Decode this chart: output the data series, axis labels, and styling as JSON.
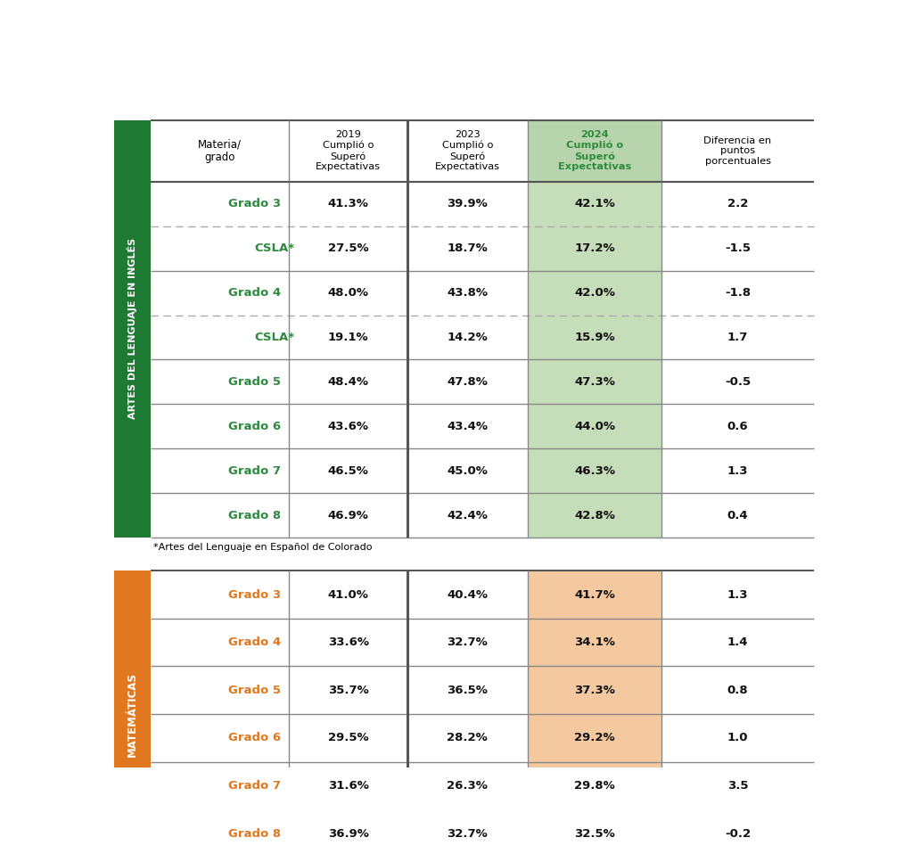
{
  "ela_rows": [
    {
      "label": "Grado 3",
      "v2019": "41.3%",
      "v2023": "39.9%",
      "v2024": "42.1%",
      "diff": "2.2",
      "dashed_below": true,
      "is_csla": false
    },
    {
      "label": "CSLA*",
      "v2019": "27.5%",
      "v2023": "18.7%",
      "v2024": "17.2%",
      "diff": "-1.5",
      "dashed_below": false,
      "is_csla": true
    },
    {
      "label": "Grado 4",
      "v2019": "48.0%",
      "v2023": "43.8%",
      "v2024": "42.0%",
      "diff": "-1.8",
      "dashed_below": true,
      "is_csla": false
    },
    {
      "label": "CSLA*",
      "v2019": "19.1%",
      "v2023": "14.2%",
      "v2024": "15.9%",
      "diff": "1.7",
      "dashed_below": false,
      "is_csla": true
    },
    {
      "label": "Grado 5",
      "v2019": "48.4%",
      "v2023": "47.8%",
      "v2024": "47.3%",
      "diff": "-0.5",
      "dashed_below": false,
      "is_csla": false
    },
    {
      "label": "Grado 6",
      "v2019": "43.6%",
      "v2023": "43.4%",
      "v2024": "44.0%",
      "diff": "0.6",
      "dashed_below": false,
      "is_csla": false
    },
    {
      "label": "Grado 7",
      "v2019": "46.5%",
      "v2023": "45.0%",
      "v2024": "46.3%",
      "diff": "1.3",
      "dashed_below": false,
      "is_csla": false
    },
    {
      "label": "Grado 8",
      "v2019": "46.9%",
      "v2023": "42.4%",
      "v2024": "42.8%",
      "diff": "0.4",
      "dashed_below": false,
      "is_csla": false
    }
  ],
  "math_rows": [
    {
      "label": "Grado 3",
      "v2019": "41.0%",
      "v2023": "40.4%",
      "v2024": "41.7%",
      "diff": "1.3"
    },
    {
      "label": "Grado 4",
      "v2019": "33.6%",
      "v2023": "32.7%",
      "v2024": "34.1%",
      "diff": "1.4"
    },
    {
      "label": "Grado 5",
      "v2019": "35.7%",
      "v2023": "36.5%",
      "v2024": "37.3%",
      "diff": "0.8"
    },
    {
      "label": "Grado 6",
      "v2019": "29.5%",
      "v2023": "28.2%",
      "v2024": "29.2%",
      "diff": "1.0"
    },
    {
      "label": "Grado 7",
      "v2019": "31.6%",
      "v2023": "26.3%",
      "v2024": "29.8%",
      "diff": "3.5"
    },
    {
      "label": "Grado 8",
      "v2019": "36.9%",
      "v2023": "32.7%",
      "v2024": "32.5%",
      "diff": "-0.2"
    }
  ],
  "header_col0": "Materia/\ngrado",
  "header_col1": "2019\nCumplió o\nSuperó\nExpectativas",
  "header_col2": "2023\nCumplió o\nSuperó\nExpectativas",
  "header_col3": "2024\nCumplió o\nSuperó\nExpectativas",
  "header_col4": "Diferencia en\npuntos\nporcentuales",
  "footnote": "*Artes del Lenguaje en Español de Colorado",
  "ela_color": "#2d8a3e",
  "ela_sidebar_bg": "#1e7a32",
  "ela_col3_bg": "#c5ddb8",
  "ela_header_col3_bg": "#b8d4ac",
  "ela_sidebar_text": "ARTES DEL LENGUAJE EN INGLÉS",
  "math_color": "#e07820",
  "math_sidebar_bg": "#e07820",
  "math_col3_bg": "#f5c9a0",
  "math_sidebar_text": "MATEMÁTICAS",
  "vline_thick_color": "#555555",
  "vline_thin_color": "#888888",
  "hline_outer_color": "#555555",
  "hline_inner_color": "#888888",
  "dashed_color": "#aaaaaa",
  "text_data_color": "#111111",
  "bg_color": "#ffffff"
}
